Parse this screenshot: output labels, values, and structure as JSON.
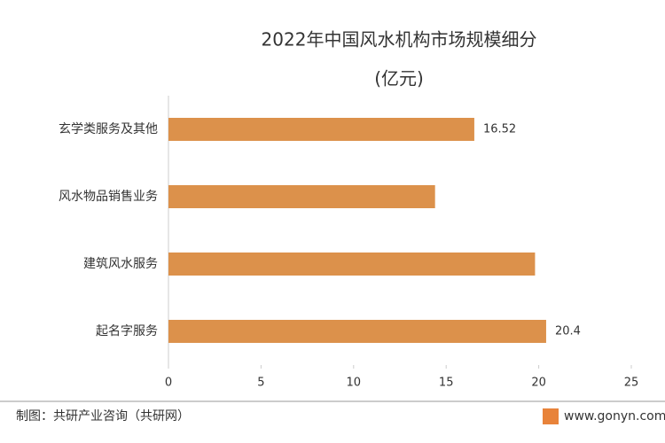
{
  "chart_data": {
    "type": "bar",
    "orientation": "horizontal",
    "title": "2022年中国风水机构市场规模细分",
    "subtitle": "(亿元)",
    "categories": [
      "玄学类服务及其他",
      "风水物品销售业务",
      "建筑风水服务",
      "起名字服务"
    ],
    "values": [
      16.52,
      14.4,
      19.8,
      20.4
    ],
    "value_labels": [
      "16.52",
      null,
      null,
      "20.4"
    ],
    "color": "#dc914b",
    "xlim": [
      0,
      25
    ],
    "xticks": [
      0,
      5,
      10,
      15,
      20,
      25
    ],
    "source": "制图：共研产业咨询（共研网）",
    "website": "www.gonyn.com"
  }
}
